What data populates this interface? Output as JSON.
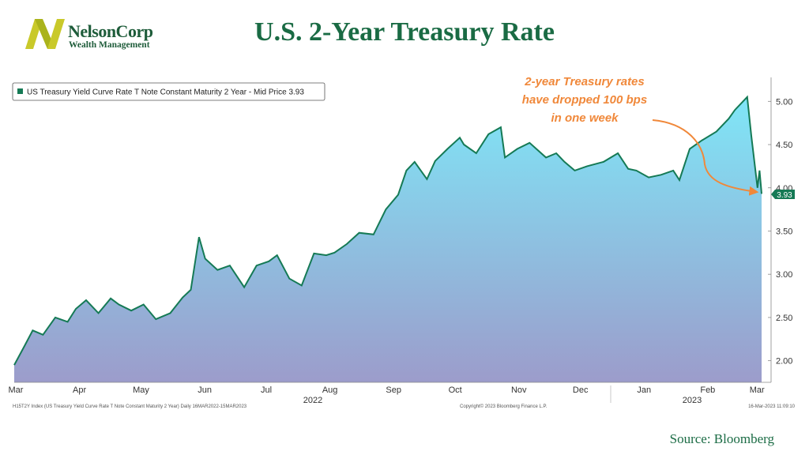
{
  "logo": {
    "brand": "NelsonCorp",
    "sub": "Wealth Management"
  },
  "title": "U.S. 2-Year Treasury Rate",
  "source": "Source:  Bloomberg",
  "footer": {
    "left": "H15T2Y Index  (US Treasury Yield Curve Rate T Note Constant Maturity 2 Year)  Daily 16MAR2022-15MAR2023",
    "center": "Copyright© 2023 Bloomberg Finance L.P.",
    "right": "16-Mar-2023 11:09:10"
  },
  "colors": {
    "line": "#157a55",
    "fill_top": "#7fe6f7",
    "fill_bottom": "#9c9ccb",
    "annotation": "#f0883a",
    "title": "#1a6b44"
  },
  "chart_data": {
    "type": "area",
    "legend": "US Treasury Yield Curve Rate T Note Constant Maturity 2 Year - Mid Price 3.93",
    "last_value_label": "3.93",
    "ylim": [
      1.75,
      5.35
    ],
    "y_ticks": [
      "2.00",
      "2.50",
      "3.00",
      "3.50",
      "4.00",
      "4.50",
      "5.00"
    ],
    "x_ticks": [
      "Mar",
      "Apr",
      "May",
      "Jun",
      "Jul",
      "Aug",
      "Sep",
      "Oct",
      "Nov",
      "Dec",
      "Jan",
      "Feb",
      "Mar"
    ],
    "year_labels": [
      "2022",
      "2023"
    ],
    "annotation": [
      "2-year Treasury rates",
      "have dropped 100 bps",
      "in one week"
    ],
    "x": [
      "2022-03-16",
      "2022-03-21",
      "2022-03-25",
      "2022-03-30",
      "2022-04-05",
      "2022-04-11",
      "2022-04-15",
      "2022-04-20",
      "2022-04-26",
      "2022-05-02",
      "2022-05-06",
      "2022-05-12",
      "2022-05-18",
      "2022-05-24",
      "2022-05-31",
      "2022-06-06",
      "2022-06-10",
      "2022-06-14",
      "2022-06-17",
      "2022-06-23",
      "2022-06-29",
      "2022-07-06",
      "2022-07-12",
      "2022-07-18",
      "2022-07-22",
      "2022-07-28",
      "2022-08-03",
      "2022-08-09",
      "2022-08-15",
      "2022-08-19",
      "2022-08-25",
      "2022-08-31",
      "2022-09-07",
      "2022-09-13",
      "2022-09-19",
      "2022-09-23",
      "2022-09-27",
      "2022-10-03",
      "2022-10-07",
      "2022-10-13",
      "2022-10-19",
      "2022-10-21",
      "2022-10-27",
      "2022-11-02",
      "2022-11-08",
      "2022-11-10",
      "2022-11-16",
      "2022-11-22",
      "2022-11-30",
      "2022-12-05",
      "2022-12-09",
      "2022-12-14",
      "2022-12-20",
      "2022-12-28",
      "2023-01-04",
      "2023-01-09",
      "2023-01-13",
      "2023-01-19",
      "2023-01-25",
      "2023-01-31",
      "2023-02-03",
      "2023-02-08",
      "2023-02-14",
      "2023-02-21",
      "2023-02-27",
      "2023-03-02",
      "2023-03-08",
      "2023-03-10",
      "2023-03-13",
      "2023-03-14",
      "2023-03-15"
    ],
    "series": [
      {
        "values": [
          1.95,
          2.17,
          2.35,
          2.3,
          2.5,
          2.45,
          2.6,
          2.7,
          2.55,
          2.72,
          2.65,
          2.58,
          2.65,
          2.48,
          2.55,
          2.73,
          2.82,
          3.43,
          3.18,
          3.05,
          3.1,
          2.85,
          3.1,
          3.15,
          3.22,
          2.95,
          2.87,
          3.24,
          3.22,
          3.25,
          3.35,
          3.48,
          3.46,
          3.75,
          3.92,
          4.2,
          4.3,
          4.1,
          4.31,
          4.45,
          4.58,
          4.5,
          4.4,
          4.62,
          4.7,
          4.35,
          4.45,
          4.52,
          4.35,
          4.4,
          4.3,
          4.2,
          4.25,
          4.3,
          4.4,
          4.22,
          4.2,
          4.12,
          4.15,
          4.2,
          4.09,
          4.45,
          4.55,
          4.65,
          4.8,
          4.9,
          5.05,
          4.6,
          4.0,
          4.2,
          3.93
        ]
      }
    ]
  }
}
